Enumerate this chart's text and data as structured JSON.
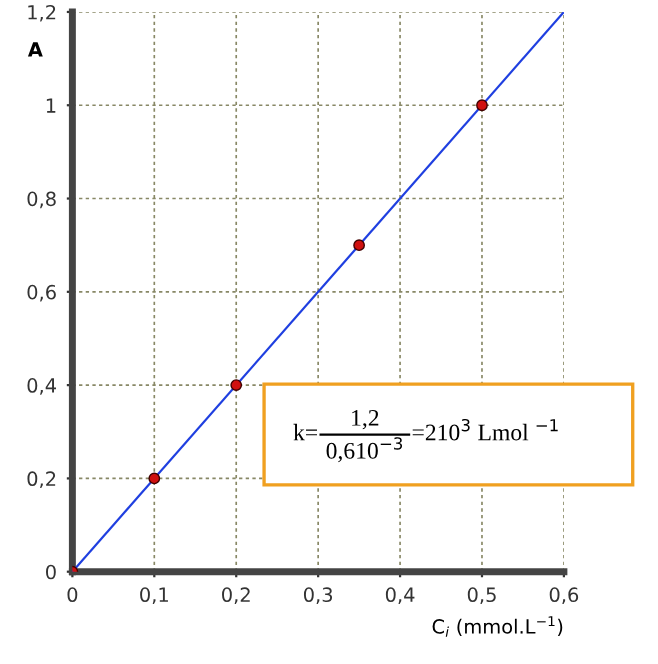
{
  "chart_data": {
    "type": "scatter",
    "xlabel": "C$_{i}$ (mmol.L$^{−1}$)",
    "ylabel": "A",
    "series": [
      {
        "color": "#d01010",
        "marker": "circle",
        "x": [
          0,
          0.1,
          0.2,
          0.35,
          0.5
        ],
        "values": [
          0,
          0.2,
          0.4,
          0.7,
          1.0
        ]
      },
      {
        "type": "line",
        "color": "#1f3fe0",
        "x": [
          0,
          0.6
        ],
        "values": [
          0,
          1.2
        ]
      }
    ],
    "xlim": [
      0,
      0.6
    ],
    "ylim": [
      0,
      1.2
    ],
    "xticks": [
      0,
      {
        "value": 0.1,
        "label": "0,1"
      },
      {
        "value": 0.2,
        "label": "0,2"
      },
      {
        "value": 0.3,
        "label": "0,3"
      },
      {
        "value": 0.4,
        "label": "0,4"
      },
      {
        "value": 0.5,
        "label": "0,5"
      },
      {
        "value": 0.6,
        "label": "0,6"
      }
    ],
    "yticks": [
      0,
      {
        "value": 0.2,
        "label": "0,2"
      },
      {
        "value": 0.4,
        "label": "0,4"
      },
      {
        "value": 0.6,
        "label": "0,6"
      },
      {
        "value": 0.8,
        "label": "0,8"
      },
      1,
      {
        "value": 1.2,
        "label": "1,2"
      }
    ],
    "grid": true,
    "annotations": [
      "k=",
      "1,2",
      "0,610$^{−3}$",
      "=210$^{3}$ Lmol $^{−1}$"
    ]
  }
}
